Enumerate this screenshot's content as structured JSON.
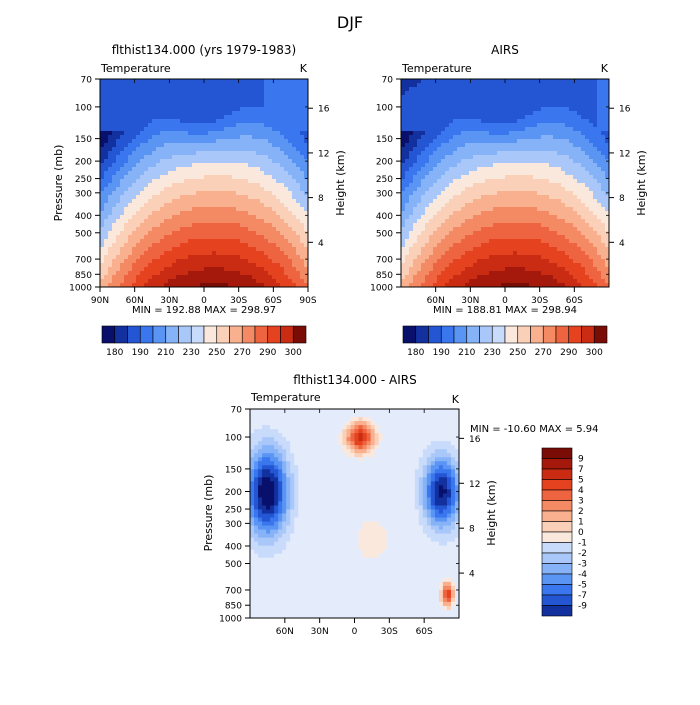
{
  "page": {
    "title": "DJF"
  },
  "colors": {
    "cold_palette": [
      "#08106b",
      "#12309e",
      "#2456d4",
      "#3a76ee",
      "#5b95f4",
      "#86b3f7",
      "#a9c8f9",
      "#c9dbfb",
      "#e4ecfc"
    ],
    "warm_palette": [
      "#fbe8dc",
      "#fbd0b8",
      "#f8b08e",
      "#f48a64",
      "#ef6440",
      "#e5431f",
      "#c92c12",
      "#a4190b",
      "#7a0c06"
    ],
    "zero": "#ffffff"
  },
  "panels": [
    {
      "id": "model",
      "title": "flthist134.000 (yrs 1979-1983)",
      "subtitle_left": "Temperature",
      "subtitle_right": "K",
      "minmax": "MIN = 192.88   MAX = 298.97",
      "ylabel_left": "Pressure (mb)",
      "ylabel_right": "Height (km)"
    },
    {
      "id": "obs",
      "title": "AIRS",
      "subtitle_left": "Temperature",
      "subtitle_right": "K",
      "minmax": "MIN = 188.81   MAX = 298.94",
      "ylabel_left": "Pressure (mb)",
      "ylabel_right": "Height (km)"
    },
    {
      "id": "diff",
      "title": "flthist134.000 - AIRS",
      "subtitle_left": "Temperature",
      "subtitle_right": "K",
      "minmax": "MIN = -10.60   MAX =    5.94",
      "ylabel_left": "Pressure (mb)",
      "ylabel_right": "Height (km)"
    }
  ],
  "chart_data": [
    {
      "type": "heatmap",
      "title": "flthist134.000 (yrs 1979-1983)",
      "field": "Temperature",
      "units": "K",
      "min": 192.88,
      "max": 298.97,
      "x_ticks": [
        "90N",
        "60N",
        "30N",
        "0",
        "30S",
        "60S",
        "90S"
      ],
      "x_tick_values": [
        90,
        60,
        30,
        0,
        -30,
        -60,
        -90
      ],
      "y_pressure_ticks": [
        70,
        100,
        150,
        200,
        250,
        300,
        400,
        500,
        700,
        850,
        1000
      ],
      "y_height_ticks": [
        4,
        8,
        12,
        16
      ],
      "colorbar_labels": [
        "180",
        "190",
        "210",
        "230",
        "250",
        "270",
        "290",
        "300"
      ]
    },
    {
      "type": "heatmap",
      "title": "AIRS",
      "field": "Temperature",
      "units": "K",
      "min": 188.81,
      "max": 298.94,
      "x_ticks": [
        "60N",
        "30N",
        "0",
        "30S",
        "60S"
      ],
      "x_tick_values": [
        60,
        30,
        0,
        -30,
        -60
      ],
      "y_pressure_ticks": [
        70,
        100,
        150,
        200,
        250,
        300,
        400,
        500,
        700,
        850,
        1000
      ],
      "y_height_ticks": [
        4,
        8,
        12,
        16
      ],
      "colorbar_labels": [
        "180",
        "190",
        "210",
        "230",
        "250",
        "270",
        "290",
        "300"
      ]
    },
    {
      "type": "heatmap",
      "title": "flthist134.000 - AIRS",
      "field": "Temperature",
      "units": "K",
      "min": -10.6,
      "max": 5.94,
      "x_ticks": [
        "60N",
        "30N",
        "0",
        "30S",
        "60S"
      ],
      "x_tick_values": [
        60,
        30,
        0,
        -30,
        -60
      ],
      "y_pressure_ticks": [
        70,
        100,
        150,
        200,
        250,
        300,
        400,
        500,
        700,
        850,
        1000
      ],
      "y_height_ticks": [
        4,
        8,
        12,
        16
      ],
      "colorbar_labels": [
        "9",
        "7",
        "5",
        "4",
        "3",
        "2",
        "1",
        "0",
        "-1",
        "-2",
        "-3",
        "-4",
        "-5",
        "-7",
        "-9"
      ]
    }
  ]
}
